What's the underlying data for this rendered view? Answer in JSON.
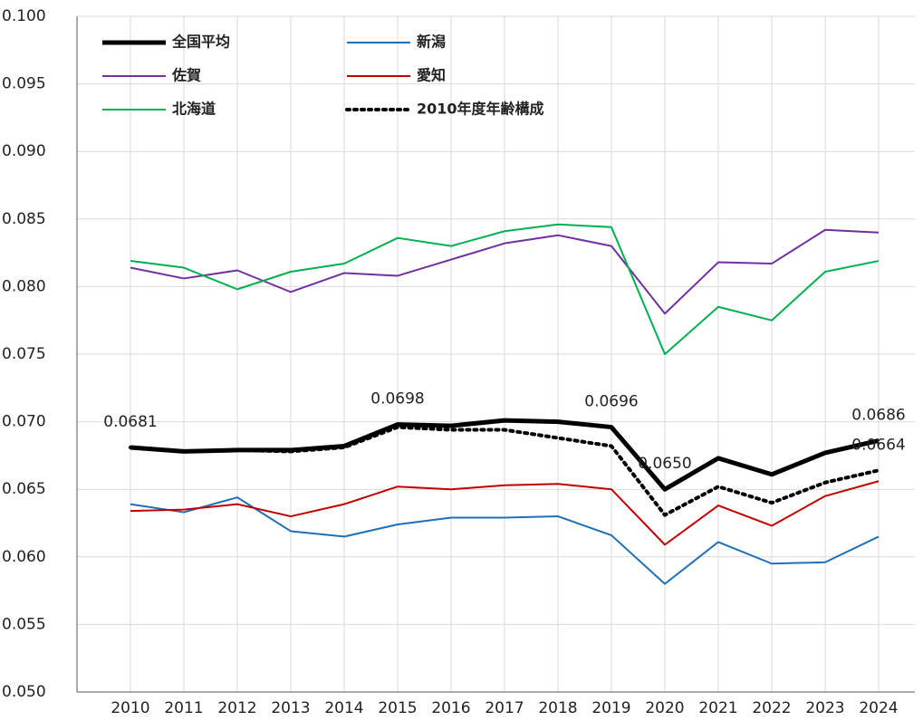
{
  "chart_data": {
    "type": "line",
    "categories": [
      "2010",
      "2011",
      "2012",
      "2013",
      "2014",
      "2015",
      "2016",
      "2017",
      "2018",
      "2019",
      "2020",
      "2021",
      "2022",
      "2023",
      "2024"
    ],
    "ylim": [
      0.05,
      0.1
    ],
    "yticks": [
      {
        "value": 0.05,
        "label": "0.050"
      },
      0.055,
      {
        "value": 0.06,
        "label": "0.060"
      },
      0.065,
      {
        "value": 0.07,
        "label": "0.070"
      },
      0.075,
      {
        "value": 0.08,
        "label": "0.080"
      },
      0.085,
      {
        "value": 0.09,
        "label": "0.090"
      },
      0.095,
      {
        "value": 0.1,
        "label": "0.100"
      }
    ],
    "grid": true,
    "legend": "upper-left",
    "series": [
      {
        "name": "全国平均",
        "color": "#000000",
        "width": 5,
        "dash": "solid",
        "values": [
          0.0681,
          0.0678,
          0.0679,
          0.0679,
          0.0682,
          0.0698,
          0.0697,
          0.0701,
          0.07,
          0.0696,
          0.065,
          0.0673,
          0.0661,
          0.0677,
          0.0686
        ],
        "value_labels": [
          "0.0681",
          null,
          null,
          null,
          null,
          "0.0698",
          null,
          null,
          null,
          "0.0696",
          "0.0650",
          null,
          null,
          null,
          "0.0686"
        ]
      },
      {
        "name": "新潟",
        "color": "#1f6fb8",
        "width": 2,
        "dash": "solid",
        "values": [
          0.0639,
          0.0633,
          0.0644,
          0.0619,
          0.0615,
          0.0624,
          0.0629,
          0.0629,
          0.063,
          0.0616,
          0.058,
          0.0611,
          0.0595,
          0.0596,
          0.0615
        ]
      },
      {
        "name": "佐賀",
        "color": "#7030a0",
        "width": 2,
        "dash": "solid",
        "values": [
          0.0814,
          0.0806,
          0.0812,
          0.0796,
          0.081,
          0.0808,
          0.082,
          0.0832,
          0.0838,
          0.083,
          0.078,
          0.0818,
          0.0817,
          0.0842,
          0.084
        ]
      },
      {
        "name": "愛知",
        "color": "#c00000",
        "width": 2,
        "dash": "solid",
        "values": [
          0.0634,
          0.0635,
          0.0639,
          0.063,
          0.0639,
          0.0652,
          0.065,
          0.0653,
          0.0654,
          0.065,
          0.0609,
          0.0638,
          0.0623,
          0.0645,
          0.0656
        ]
      },
      {
        "name": "北海道",
        "color": "#00b050",
        "width": 2,
        "dash": "solid",
        "values": [
          0.0819,
          0.0814,
          0.0798,
          0.0811,
          0.0817,
          0.0836,
          0.083,
          0.0841,
          0.0846,
          0.0844,
          0.075,
          0.0785,
          0.0775,
          0.0811,
          0.0819
        ]
      },
      {
        "name": "2010年度年齢構成",
        "color": "#000000",
        "width": 4,
        "dash": "dotted",
        "values": [
          0.0681,
          0.0678,
          0.0679,
          0.0678,
          0.0681,
          0.0696,
          0.0694,
          0.0694,
          0.0688,
          0.0682,
          0.0631,
          0.0652,
          0.064,
          0.0655,
          0.0664
        ],
        "value_labels": [
          null,
          null,
          null,
          null,
          null,
          null,
          null,
          null,
          null,
          null,
          null,
          null,
          null,
          null,
          "0.0664"
        ]
      }
    ]
  }
}
